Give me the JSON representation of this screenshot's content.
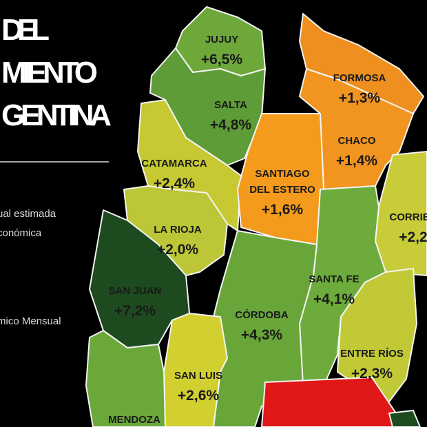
{
  "title_lines": [
    "DEL",
    "MIENTO",
    "GENTINA"
  ],
  "notes": [
    "ual estimada",
    "conómica",
    "mico Mensual"
  ],
  "provinces": [
    {
      "name": [
        "JUJUY"
      ],
      "value": "+6,5%",
      "color": "#6ea83a"
    },
    {
      "name": [
        "SALTA"
      ],
      "value": "+4,8%",
      "color": "#5d9c36"
    },
    {
      "name": [
        "FORMOSA"
      ],
      "value": "+1,3%",
      "color": "#ef8f1f"
    },
    {
      "name": [
        "CHACO"
      ],
      "value": "+1,4%",
      "color": "#f29420"
    },
    {
      "name": [
        "CATAMARCA"
      ],
      "value": "+2,4%",
      "color": "#c6c932"
    },
    {
      "name": [
        "SANTIAGO",
        "DEL ESTERO"
      ],
      "value": "+1,6%",
      "color": "#f49a1c"
    },
    {
      "name": [
        "CORRIEN"
      ],
      "value": "+2,2",
      "color": "#c8cc38"
    },
    {
      "name": [
        "LA RIOJA"
      ],
      "value": "+2,0%",
      "color": "#bcc636"
    },
    {
      "name": [
        "SAN JUAN"
      ],
      "value": "+7,2%",
      "color": "#1d4a1f"
    },
    {
      "name": [
        "SANTA FE"
      ],
      "value": "+4,1%",
      "color": "#6dac3c"
    },
    {
      "name": [
        "CÓRDOBA"
      ],
      "value": "+4,3%",
      "color": "#68a63a"
    },
    {
      "name": [
        "ENTRE RÍOS"
      ],
      "value": "+2,3%",
      "color": "#c2c936"
    },
    {
      "name": [
        "SAN LUIS"
      ],
      "value": "+2,6%",
      "color": "#d2cf30"
    },
    {
      "name": [
        "MENDOZA"
      ],
      "color": "#6aa83a"
    }
  ]
}
